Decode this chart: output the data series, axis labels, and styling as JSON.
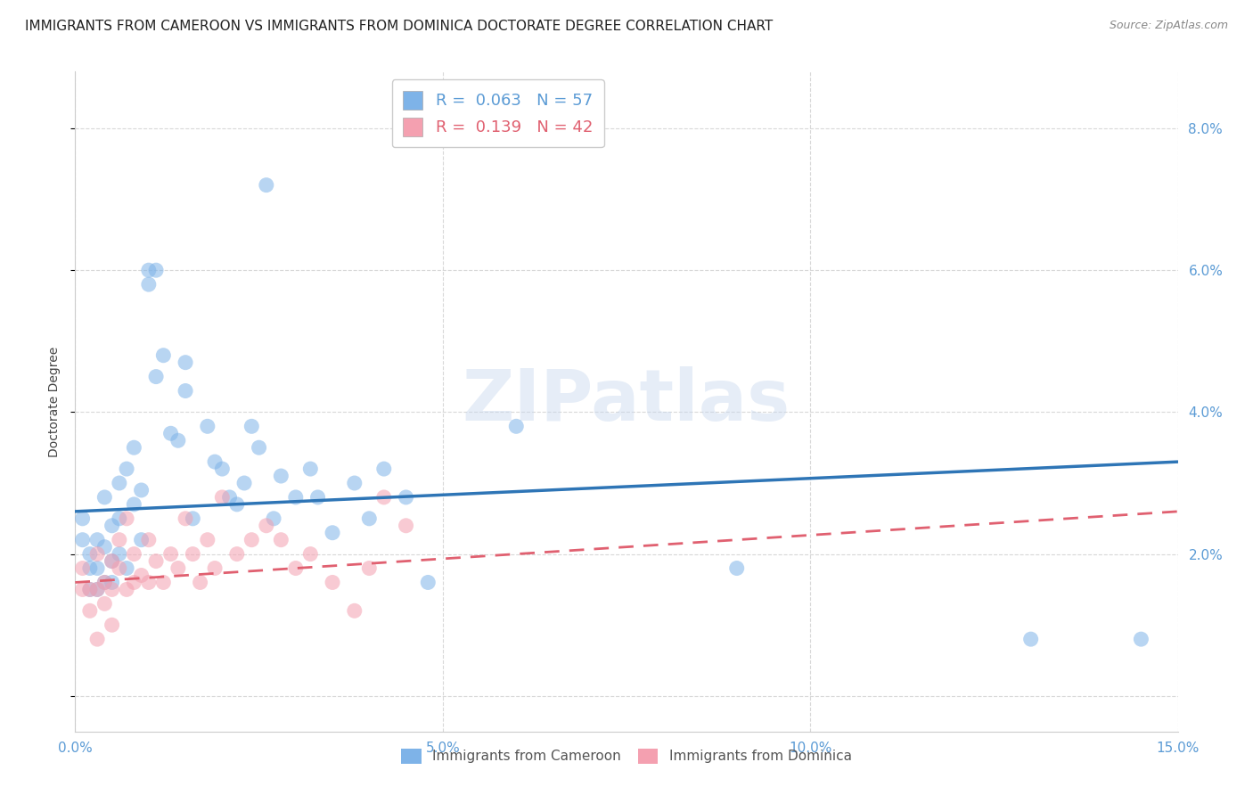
{
  "title": "IMMIGRANTS FROM CAMEROON VS IMMIGRANTS FROM DOMINICA DOCTORATE DEGREE CORRELATION CHART",
  "source": "Source: ZipAtlas.com",
  "ylabel": "Doctorate Degree",
  "xmin": 0.0,
  "xmax": 0.15,
  "ymin": -0.005,
  "ymax": 0.088,
  "yticks": [
    0.0,
    0.02,
    0.04,
    0.06,
    0.08
  ],
  "ytick_labels": [
    "",
    "2.0%",
    "4.0%",
    "6.0%",
    "8.0%"
  ],
  "xticks": [
    0.0,
    0.05,
    0.1,
    0.15
  ],
  "xtick_labels": [
    "0.0%",
    "5.0%",
    "10.0%",
    "15.0%"
  ],
  "cam_color": "#7EB3E8",
  "dom_color": "#F4A0B0",
  "cam_line_color": "#2E75B6",
  "dom_line_color": "#E06070",
  "cam_R": 0.063,
  "cam_N": 57,
  "dom_R": 0.139,
  "dom_N": 42,
  "cam_trend_start": 0.026,
  "cam_trend_end": 0.033,
  "dom_trend_start": 0.016,
  "dom_trend_end": 0.026,
  "series_cameroon_x": [
    0.001,
    0.001,
    0.002,
    0.002,
    0.002,
    0.003,
    0.003,
    0.003,
    0.004,
    0.004,
    0.004,
    0.005,
    0.005,
    0.005,
    0.006,
    0.006,
    0.006,
    0.007,
    0.007,
    0.008,
    0.008,
    0.009,
    0.009,
    0.01,
    0.01,
    0.011,
    0.011,
    0.012,
    0.013,
    0.014,
    0.015,
    0.015,
    0.016,
    0.018,
    0.019,
    0.02,
    0.021,
    0.022,
    0.023,
    0.024,
    0.025,
    0.026,
    0.027,
    0.028,
    0.03,
    0.032,
    0.033,
    0.035,
    0.038,
    0.04,
    0.042,
    0.045,
    0.048,
    0.06,
    0.09,
    0.13,
    0.145
  ],
  "series_cameroon_y": [
    0.025,
    0.022,
    0.02,
    0.018,
    0.015,
    0.022,
    0.018,
    0.015,
    0.028,
    0.021,
    0.016,
    0.024,
    0.019,
    0.016,
    0.03,
    0.025,
    0.02,
    0.032,
    0.018,
    0.035,
    0.027,
    0.029,
    0.022,
    0.06,
    0.058,
    0.06,
    0.045,
    0.048,
    0.037,
    0.036,
    0.047,
    0.043,
    0.025,
    0.038,
    0.033,
    0.032,
    0.028,
    0.027,
    0.03,
    0.038,
    0.035,
    0.072,
    0.025,
    0.031,
    0.028,
    0.032,
    0.028,
    0.023,
    0.03,
    0.025,
    0.032,
    0.028,
    0.016,
    0.038,
    0.018,
    0.008,
    0.008
  ],
  "series_dominica_x": [
    0.001,
    0.001,
    0.002,
    0.002,
    0.003,
    0.003,
    0.003,
    0.004,
    0.004,
    0.005,
    0.005,
    0.005,
    0.006,
    0.006,
    0.007,
    0.007,
    0.008,
    0.008,
    0.009,
    0.01,
    0.01,
    0.011,
    0.012,
    0.013,
    0.014,
    0.015,
    0.016,
    0.017,
    0.018,
    0.019,
    0.02,
    0.022,
    0.024,
    0.026,
    0.028,
    0.03,
    0.032,
    0.035,
    0.038,
    0.04,
    0.042,
    0.045
  ],
  "series_dominica_y": [
    0.018,
    0.015,
    0.015,
    0.012,
    0.02,
    0.015,
    0.008,
    0.016,
    0.013,
    0.019,
    0.015,
    0.01,
    0.022,
    0.018,
    0.025,
    0.015,
    0.02,
    0.016,
    0.017,
    0.022,
    0.016,
    0.019,
    0.016,
    0.02,
    0.018,
    0.025,
    0.02,
    0.016,
    0.022,
    0.018,
    0.028,
    0.02,
    0.022,
    0.024,
    0.022,
    0.018,
    0.02,
    0.016,
    0.012,
    0.018,
    0.028,
    0.024
  ],
  "watermark_text": "ZIPatlas",
  "background_color": "#ffffff",
  "grid_color": "#d8d8d8",
  "axis_color": "#5B9BD5",
  "title_fontsize": 11,
  "label_fontsize": 10,
  "tick_fontsize": 11
}
